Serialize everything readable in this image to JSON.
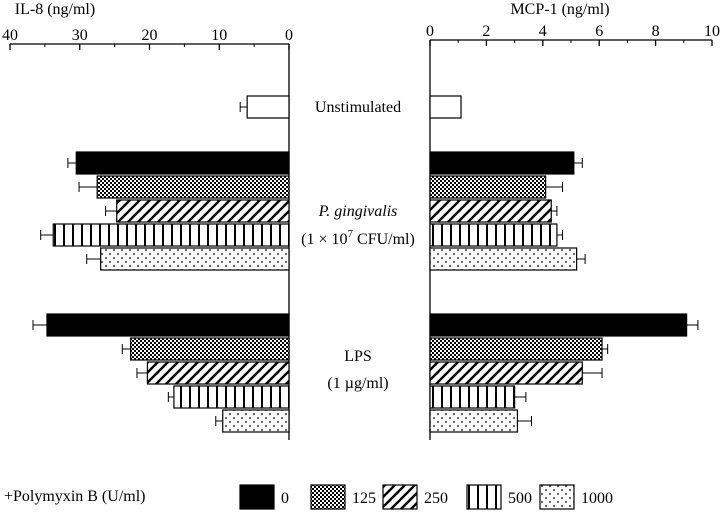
{
  "chart_data": [
    {
      "type": "bar",
      "orientation": "horizontal",
      "direction": "reversed",
      "title": "IL-8 (ng/ml)",
      "xlim": [
        0,
        40
      ],
      "ticks": [
        40,
        30,
        20,
        10,
        0
      ],
      "groups": [
        "Unstimulated",
        "P. gingivalis (1×10^7 CFU/ml)",
        "LPS (1 µg/ml)"
      ],
      "series": [
        {
          "name": "Unstimulated",
          "values": [
            6.0,
            null,
            null
          ],
          "errors": [
            1.0,
            null,
            null
          ]
        },
        {
          "name": "0",
          "values": [
            null,
            30.5,
            34.7
          ],
          "errors": [
            null,
            1.2,
            2.0
          ]
        },
        {
          "name": "125",
          "values": [
            null,
            27.5,
            22.7
          ],
          "errors": [
            null,
            2.6,
            1.2
          ]
        },
        {
          "name": "250",
          "values": [
            null,
            24.7,
            20.3
          ],
          "errors": [
            null,
            1.6,
            1.5
          ]
        },
        {
          "name": "500",
          "values": [
            null,
            33.8,
            16.5
          ],
          "errors": [
            null,
            1.8,
            0.8
          ]
        },
        {
          "name": "1000",
          "values": [
            null,
            27.0,
            9.5
          ],
          "errors": [
            null,
            2.0,
            1.0
          ]
        }
      ]
    },
    {
      "type": "bar",
      "orientation": "horizontal",
      "title": "MCP-1 (ng/ml)",
      "xlim": [
        0,
        10
      ],
      "ticks": [
        0,
        2,
        4,
        6,
        8,
        10
      ],
      "groups": [
        "Unstimulated",
        "P. gingivalis (1×10^7 CFU/ml)",
        "LPS (1 µg/ml)"
      ],
      "series": [
        {
          "name": "Unstimulated",
          "values": [
            1.1,
            null,
            null
          ],
          "errors": [
            null,
            null,
            null
          ]
        },
        {
          "name": "0",
          "values": [
            null,
            5.1,
            9.1
          ],
          "errors": [
            null,
            0.3,
            0.4
          ]
        },
        {
          "name": "125",
          "values": [
            null,
            4.1,
            6.1
          ],
          "errors": [
            null,
            0.6,
            0.2
          ]
        },
        {
          "name": "250",
          "values": [
            null,
            4.3,
            5.4
          ],
          "errors": [
            null,
            0.2,
            0.7
          ]
        },
        {
          "name": "500",
          "values": [
            null,
            4.5,
            3.0
          ],
          "errors": [
            null,
            0.2,
            0.4
          ]
        },
        {
          "name": "1000",
          "values": [
            null,
            5.2,
            3.1
          ],
          "errors": [
            null,
            0.3,
            0.5
          ]
        }
      ]
    }
  ],
  "labels": {
    "unstimulated": "Unstimulated",
    "pg_name": "P. gingivalis",
    "pg_dose_prefix": "(1 × 10",
    "pg_dose_exp": "7",
    "pg_dose_suffix": " CFU/ml)",
    "lps": "LPS",
    "lps_dose": "(1 µg/ml)"
  },
  "legend": {
    "title": "+Polymyxin B (U/ml)",
    "items": [
      {
        "label": "0",
        "pattern": "solid"
      },
      {
        "label": "125",
        "pattern": "checker"
      },
      {
        "label": "250",
        "pattern": "diagonal"
      },
      {
        "label": "500",
        "pattern": "vertical"
      },
      {
        "label": "1000",
        "pattern": "dots"
      }
    ]
  }
}
